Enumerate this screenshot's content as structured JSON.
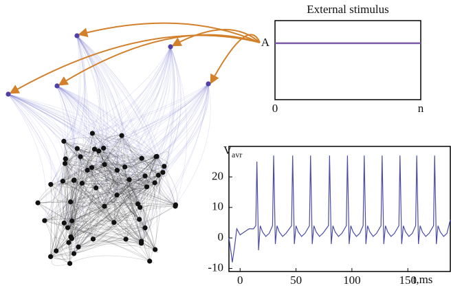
{
  "chart_data": [
    {
      "type": "line",
      "title": "External stimulus",
      "x": [
        0,
        1
      ],
      "values": [
        1,
        1
      ],
      "color": "#7a5aa8",
      "xlim": [
        0,
        1
      ],
      "xticks": [
        {
          "value": 0,
          "label": "0"
        },
        {
          "value": 1,
          "label": "n"
        }
      ],
      "ylim": [
        0,
        1.4
      ],
      "yticks": [
        {
          "value": 1,
          "label": "A"
        }
      ]
    },
    {
      "type": "line",
      "x_label": "t,ms",
      "y_label": "V",
      "y_label_subscript": "avr",
      "color": "#4a4aa8",
      "x": [
        -10,
        -8,
        -7,
        -5,
        -3,
        0,
        4,
        8,
        12,
        14,
        15,
        16.5,
        18,
        20,
        23,
        26,
        29,
        30,
        31.5,
        33,
        35,
        38,
        41,
        46,
        47,
        48.5,
        50,
        52,
        55,
        58,
        62,
        63,
        64.5,
        66,
        68,
        71,
        74,
        79,
        80,
        81.5,
        83,
        85,
        88,
        91,
        95,
        96,
        97.5,
        99,
        101,
        104,
        107,
        110,
        111,
        112.5,
        114,
        116,
        119,
        122,
        126,
        127,
        128.5,
        130,
        132,
        135,
        138,
        142,
        143,
        144.5,
        146,
        148,
        151,
        154,
        157,
        158,
        159.5,
        161,
        163,
        166,
        169,
        173,
        174,
        175.5,
        177,
        179,
        182,
        185,
        188
      ],
      "values": [
        0,
        -5,
        -8,
        -3,
        3,
        1,
        2,
        3,
        3,
        4,
        25,
        -4,
        4,
        2,
        0.5,
        1.5,
        4,
        27,
        -2,
        4,
        2,
        0.5,
        1.5,
        4,
        27,
        -2,
        4,
        2,
        0.5,
        1.5,
        4,
        27,
        -2,
        4,
        2,
        0.5,
        1.5,
        4,
        27,
        -2,
        4,
        2,
        0.5,
        1.5,
        4,
        27,
        -2,
        4,
        2,
        0.5,
        1.5,
        4,
        27,
        -2,
        4,
        2,
        0.5,
        1.5,
        4,
        27,
        -2,
        4,
        2,
        0.5,
        1.5,
        4,
        27,
        -2,
        4,
        2,
        0.5,
        1.5,
        4,
        27,
        -2,
        4,
        2,
        0.5,
        1.5,
        4,
        27,
        -2,
        4,
        2,
        0.5,
        1.5,
        6
      ],
      "xlim": [
        -10,
        188
      ],
      "xticks": [
        0,
        50,
        100,
        150
      ],
      "ylim": [
        -11,
        30
      ],
      "yticks": [
        -10,
        0,
        10,
        20
      ]
    }
  ]
}
